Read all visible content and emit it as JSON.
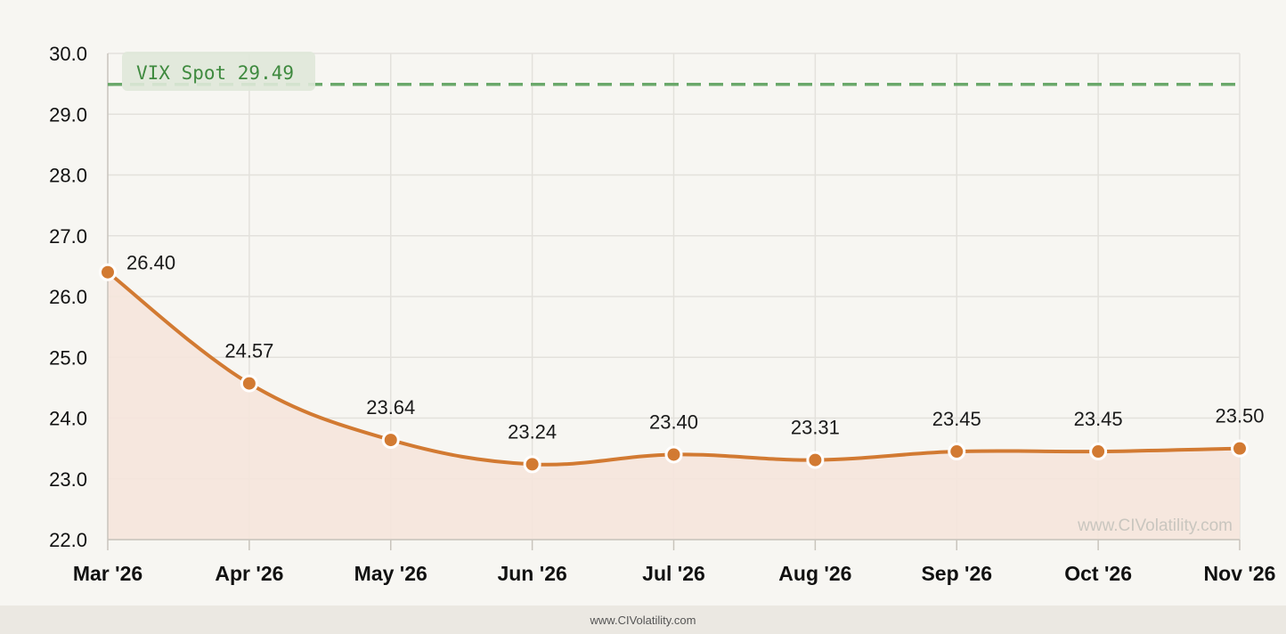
{
  "chart_data": {
    "type": "line",
    "title": "",
    "xlabel": "",
    "ylabel": "",
    "categories": [
      "Mar '26",
      "Apr '26",
      "May '26",
      "Jun '26",
      "Jul '26",
      "Aug '26",
      "Sep '26",
      "Oct '26",
      "Nov '26"
    ],
    "series": [
      {
        "values": [
          26.4,
          24.57,
          23.64,
          23.24,
          23.4,
          23.31,
          23.45,
          23.45,
          23.5
        ],
        "labels": [
          "26.40",
          "24.57",
          "23.64",
          "23.24",
          "23.40",
          "23.31",
          "23.45",
          "23.45",
          "23.50"
        ],
        "color": "#d27a32",
        "fill": "#f5e6dc"
      }
    ],
    "ylim": [
      22.0,
      30.0
    ],
    "yticks": [
      "22.0",
      "23.0",
      "24.0",
      "25.0",
      "26.0",
      "27.0",
      "28.0",
      "29.0",
      "30.0"
    ],
    "grid": true,
    "reference_line": {
      "label": "VIX Spot 29.49",
      "value": 29.49,
      "color": "#6aa86a"
    },
    "watermark": "www.CIVolatility.com"
  },
  "footer": {
    "text": "www.CIVolatility.com"
  }
}
